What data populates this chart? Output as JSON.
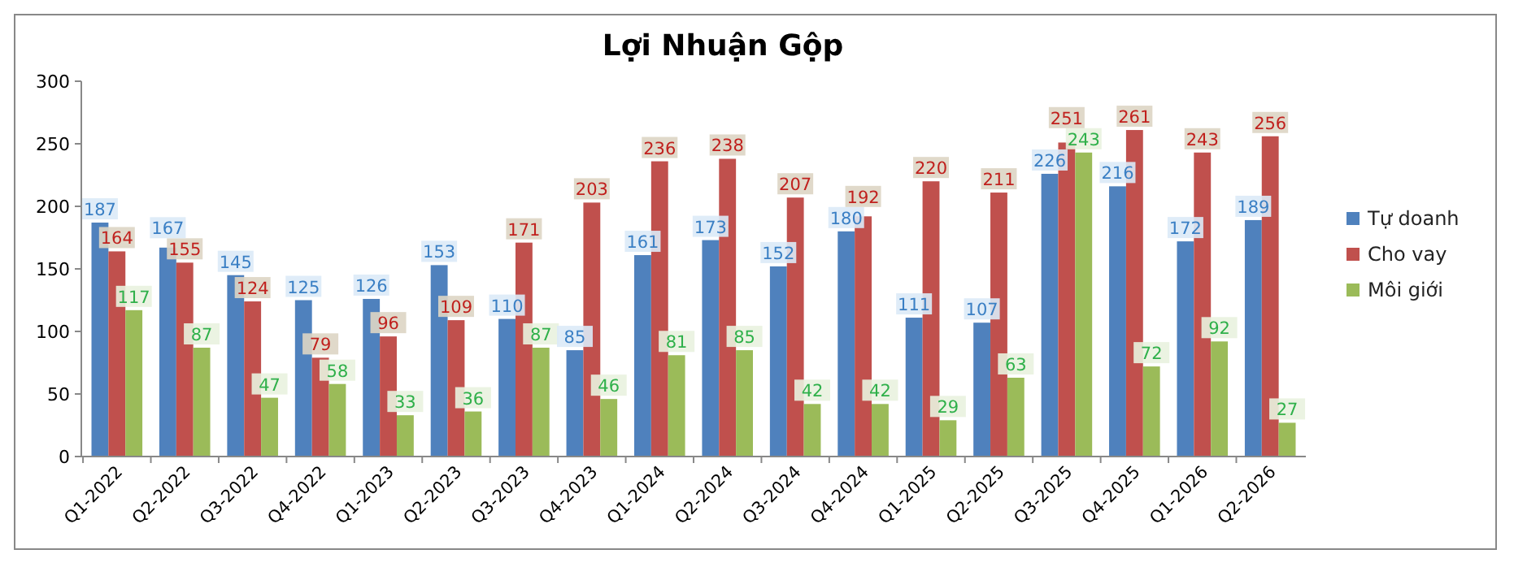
{
  "chart_data": {
    "type": "bar",
    "title": "Lợi Nhuận Gộp",
    "categories": [
      "Q1-2022",
      "Q2-2022",
      "Q3-2022",
      "Q4-2022",
      "Q1-2023",
      "Q2-2023",
      "Q3-2023",
      "Q4-2023",
      "Q1-2024",
      "Q2-2024",
      "Q3-2024",
      "Q4-2024",
      "Q1-2025",
      "Q2-2025",
      "Q3-2025",
      "Q4-2025",
      "Q1-2026",
      "Q2-2026"
    ],
    "series": [
      {
        "name": "Tự doanh",
        "color": "#4f81bd",
        "values": [
          187,
          167,
          145,
          125,
          126,
          153,
          110,
          85,
          161,
          173,
          152,
          180,
          111,
          107,
          226,
          216,
          172,
          189
        ]
      },
      {
        "name": "Cho vay",
        "color": "#c0504d",
        "values": [
          164,
          155,
          124,
          79,
          96,
          109,
          171,
          203,
          236,
          238,
          207,
          192,
          220,
          211,
          251,
          261,
          243,
          256
        ]
      },
      {
        "name": "Môi giới",
        "color": "#9bbb59",
        "values": [
          117,
          87,
          47,
          58,
          33,
          36,
          87,
          46,
          81,
          85,
          42,
          42,
          29,
          63,
          243,
          72,
          92,
          27
        ]
      }
    ],
    "ylim": [
      0,
      300
    ],
    "yticks": [
      0,
      50,
      100,
      150,
      200,
      250,
      300
    ],
    "grid": false,
    "legend": "right",
    "data_labels": true
  }
}
